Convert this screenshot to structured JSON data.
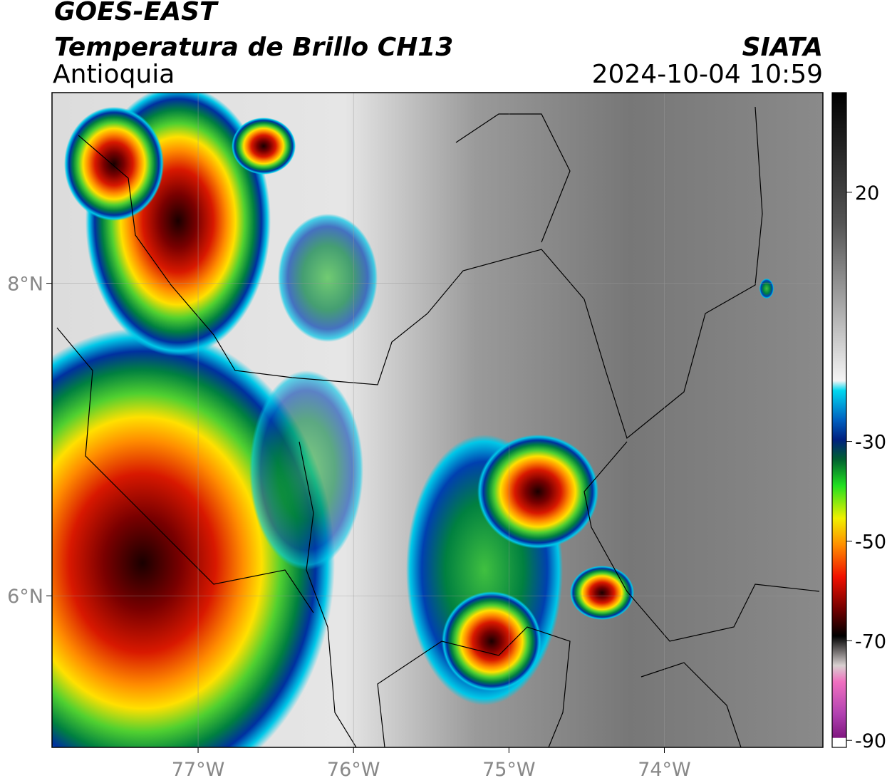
{
  "header": {
    "title": "GOES-EAST",
    "subtitle": "Temperatura de Brillo CH13",
    "region": "Antioquia",
    "source": "SIATA",
    "timestamp": "2024-10-04 10:59"
  },
  "map": {
    "xlim": [
      -77.94,
      -72.98
    ],
    "ylim": [
      5.03,
      9.22
    ],
    "xticks": [
      {
        "value": -77,
        "label": "77°W"
      },
      {
        "value": -76,
        "label": "76°W"
      },
      {
        "value": -75,
        "label": "75°W"
      },
      {
        "value": -74,
        "label": "74°W"
      }
    ],
    "yticks": [
      {
        "value": 8,
        "label": "8°N"
      },
      {
        "value": 6,
        "label": "6°N"
      }
    ],
    "grid": true
  },
  "colorbar": {
    "lim": [
      -91.4,
      40
    ],
    "ticks": [
      20,
      -30,
      -50,
      -70,
      -90
    ]
  }
}
